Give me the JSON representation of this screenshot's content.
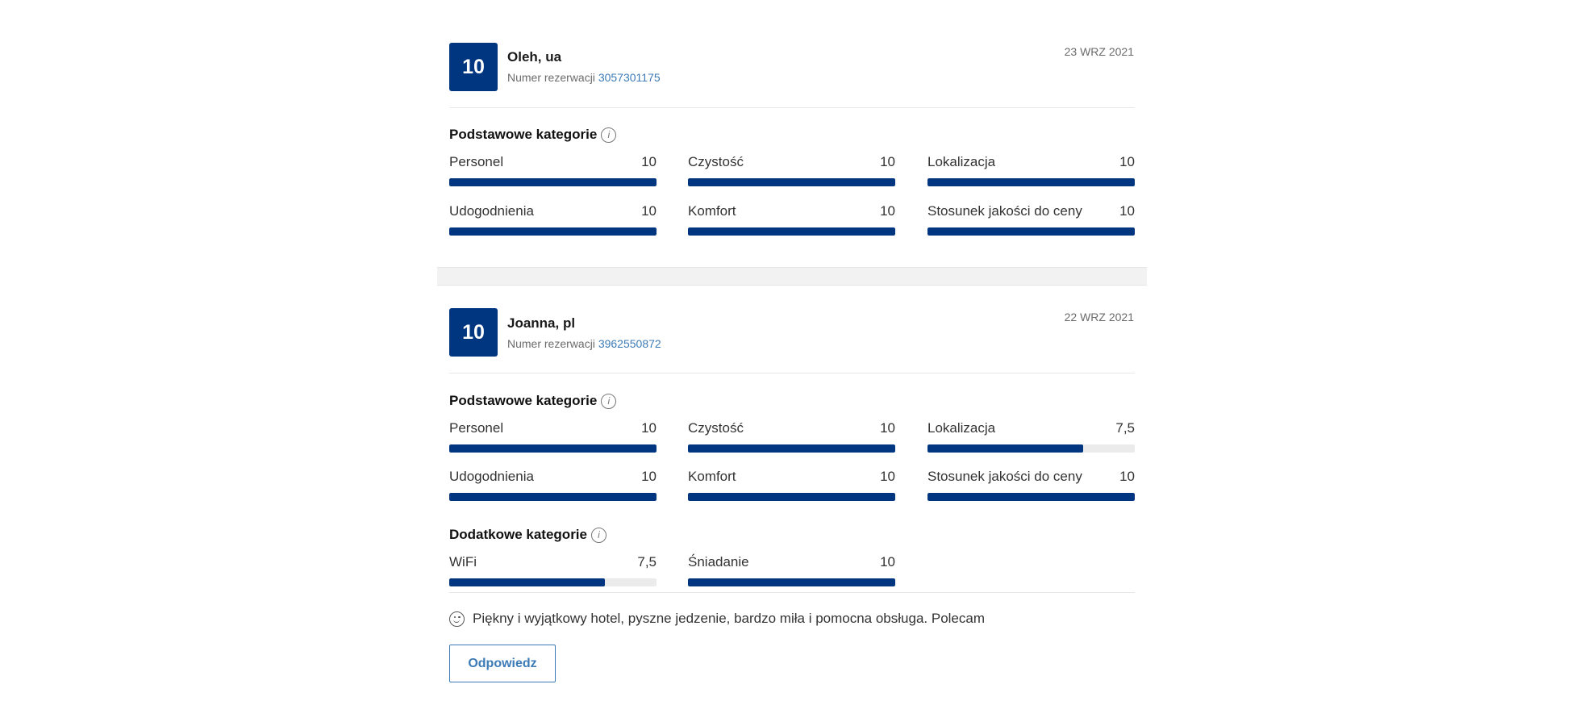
{
  "reviews": [
    {
      "score": "10",
      "name": "Oleh, ua",
      "booking_label": "Numer rezerwacji",
      "booking_number": "3057301175",
      "date": "23 WRZ 2021",
      "basic_title": "Podstawowe kategorie",
      "basic": [
        {
          "label": "Personel",
          "value": "10",
          "fraction": 1.0
        },
        {
          "label": "Czystość",
          "value": "10",
          "fraction": 1.0
        },
        {
          "label": "Lokalizacja",
          "value": "10",
          "fraction": 1.0
        },
        {
          "label": "Udogodnienia",
          "value": "10",
          "fraction": 1.0
        },
        {
          "label": "Komfort",
          "value": "10",
          "fraction": 1.0
        },
        {
          "label": "Stosunek jakości do ceny",
          "value": "10",
          "fraction": 1.0
        }
      ]
    },
    {
      "score": "10",
      "name": "Joanna, pl",
      "booking_label": "Numer rezerwacji",
      "booking_number": "3962550872",
      "date": "22 WRZ 2021",
      "basic_title": "Podstawowe kategorie",
      "basic": [
        {
          "label": "Personel",
          "value": "10",
          "fraction": 1.0
        },
        {
          "label": "Czystość",
          "value": "10",
          "fraction": 1.0
        },
        {
          "label": "Lokalizacja",
          "value": "7,5",
          "fraction": 0.75
        },
        {
          "label": "Udogodnienia",
          "value": "10",
          "fraction": 1.0
        },
        {
          "label": "Komfort",
          "value": "10",
          "fraction": 1.0
        },
        {
          "label": "Stosunek jakości do ceny",
          "value": "10",
          "fraction": 1.0
        }
      ],
      "extra_title": "Dodatkowe kategorie",
      "extra": [
        {
          "label": "WiFi",
          "value": "7,5",
          "fraction": 0.75
        },
        {
          "label": "Śniadanie",
          "value": "10",
          "fraction": 1.0
        }
      ],
      "comment": "Piękny i wyjątkowy hotel, pyszne jedzenie, bardzo miła i pomocna obsługa. Polecam",
      "reply_label": "Odpowiedz"
    }
  ],
  "colors": {
    "brand": "#003580",
    "link": "#3d7bb6",
    "track": "#ebebeb"
  }
}
